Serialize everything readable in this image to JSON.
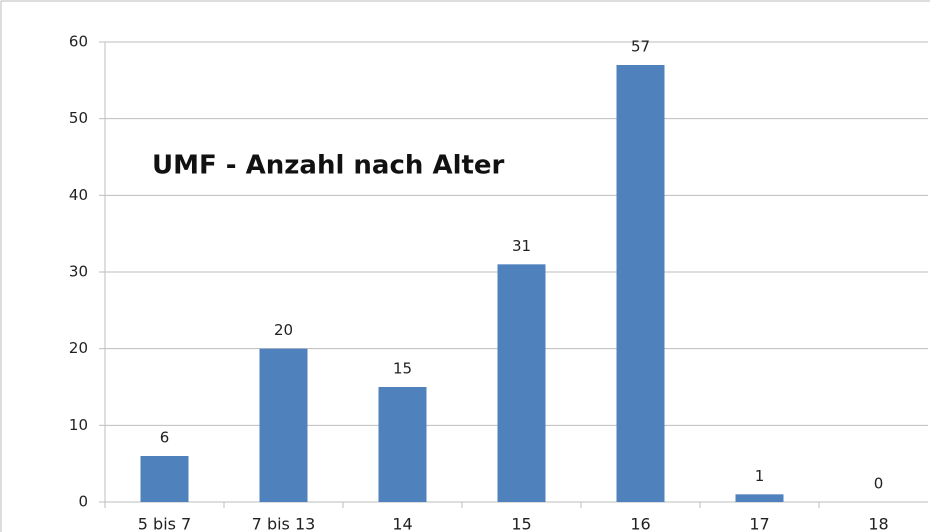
{
  "chart_data": {
    "type": "bar",
    "title": "UMF - Anzahl nach Alter",
    "categories": [
      "5 bis 7",
      "7 bis 13",
      "14",
      "15",
      "16",
      "17",
      "18"
    ],
    "values": [
      6,
      20,
      15,
      31,
      57,
      1,
      0
    ],
    "color": "#4f81bd",
    "ylim": [
      0,
      60
    ],
    "yticks": [
      0,
      10,
      20,
      30,
      40,
      50,
      60
    ],
    "grid": true
  }
}
